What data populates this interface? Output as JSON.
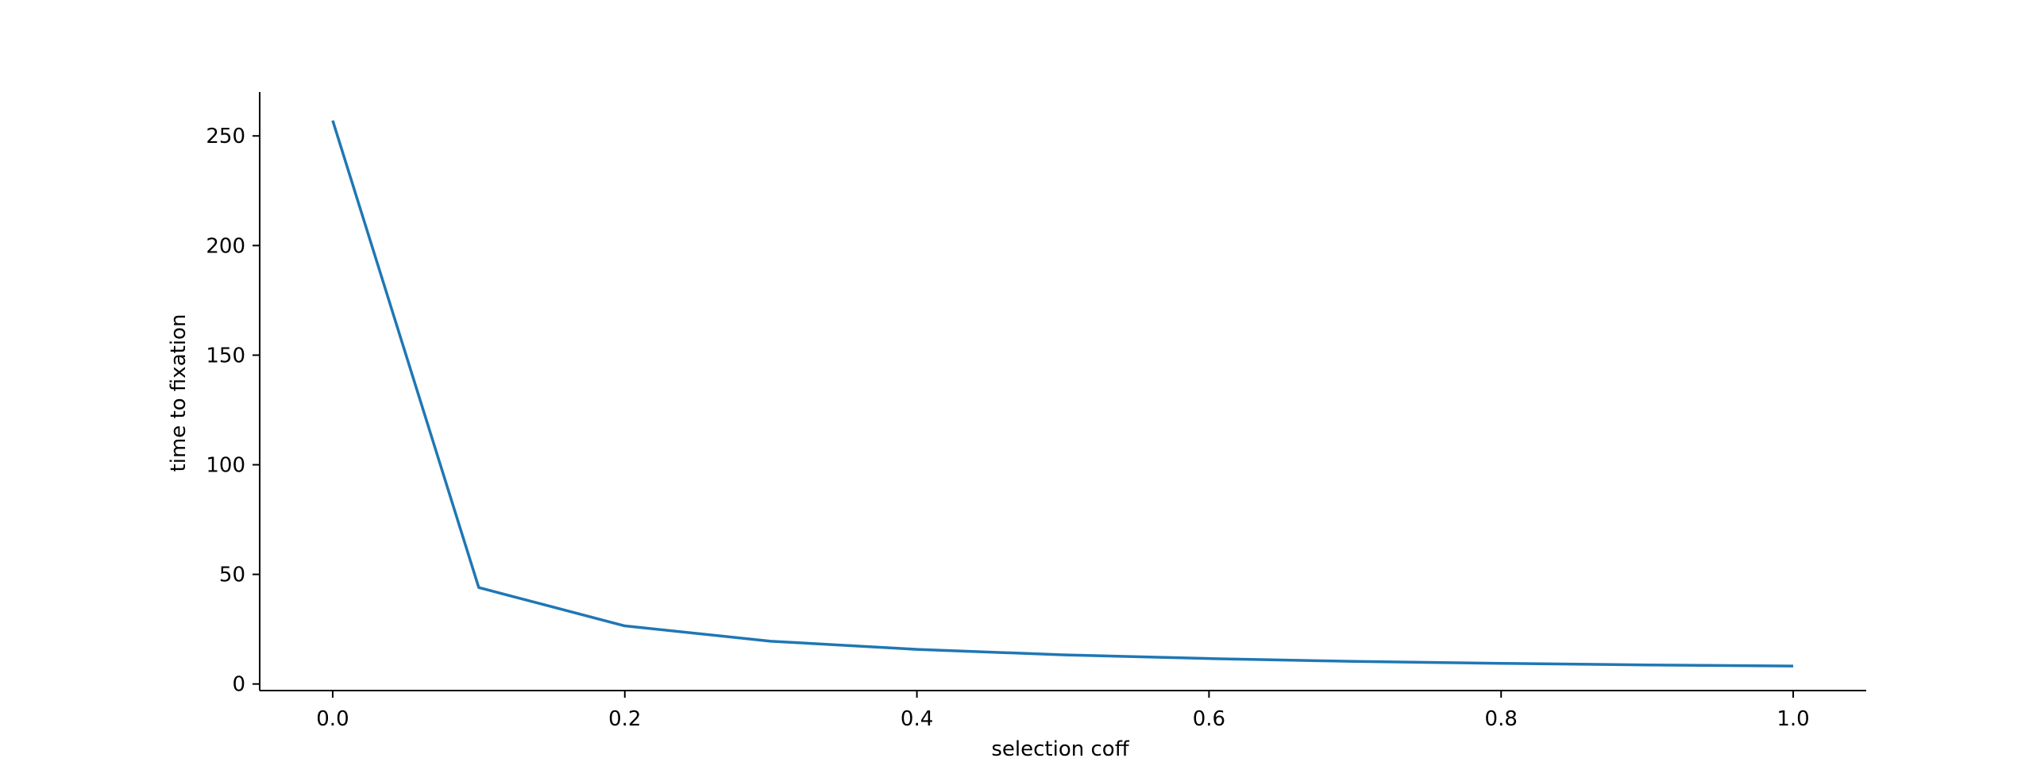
{
  "chart_data": {
    "type": "line",
    "title": "",
    "xlabel": "selection coff",
    "ylabel": "time to fixation",
    "xlim": [
      -0.05,
      1.05
    ],
    "ylim": [
      -3,
      270
    ],
    "xticks": [
      0.0,
      0.2,
      0.4,
      0.6,
      0.8,
      1.0
    ],
    "xtick_labels": [
      "0.0",
      "0.2",
      "0.4",
      "0.6",
      "0.8",
      "1.0"
    ],
    "yticks": [
      0,
      50,
      100,
      150,
      200,
      250
    ],
    "ytick_labels": [
      "0",
      "50",
      "100",
      "150",
      "200",
      "250"
    ],
    "grid": false,
    "legend": "none",
    "series": [
      {
        "color": "#1f77b4",
        "x": [
          0.0,
          0.1,
          0.2,
          0.3,
          0.4,
          0.5,
          0.6,
          0.7,
          0.8,
          0.9,
          1.0
        ],
        "values": [
          257,
          44,
          26.5,
          19.5,
          15.8,
          13.3,
          11.6,
          10.3,
          9.4,
          8.7,
          8.2
        ]
      }
    ]
  }
}
